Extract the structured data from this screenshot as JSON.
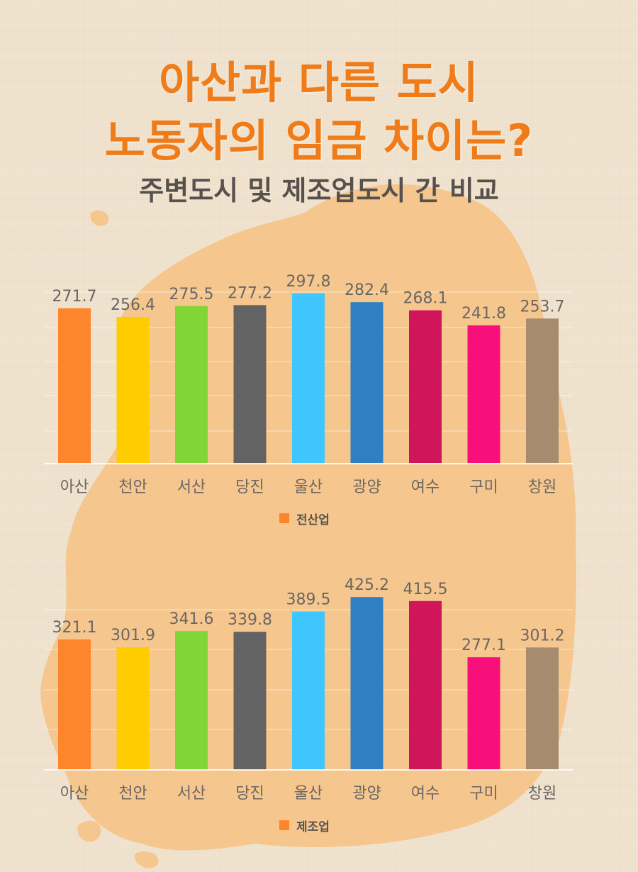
{
  "header": {
    "title_line1": "아산과 다른 도시",
    "title_line2": "노동자의 임금 차이는?",
    "subtitle": "주변도시 및 제조업도시 간 비교"
  },
  "colors": {
    "title": "#f07c19",
    "subtitle": "#58504c",
    "map": "#f6c283",
    "background": "#f1e4d0",
    "bars": [
      "#fd862c",
      "#ffcc00",
      "#7fd636",
      "#636363",
      "#3fc6fe",
      "#2f80c2",
      "#d0155a",
      "#f8107a",
      "#a68b6e"
    ]
  },
  "chart_data": [
    {
      "type": "bar",
      "categories": [
        "아산",
        "천안",
        "서산",
        "당진",
        "울산",
        "광양",
        "여수",
        "구미",
        "창원"
      ],
      "series": [
        {
          "name": "전산업",
          "values": [
            271.7,
            256.4,
            275.5,
            277.2,
            297.8,
            282.4,
            268.1,
            241.8,
            253.7
          ]
        }
      ],
      "value_labels": [
        "271.7",
        "256.4",
        "275.5",
        "277.2",
        "297.8",
        "282.4",
        "268.1",
        "241.8",
        "253.7"
      ],
      "ylim": [
        0,
        300
      ],
      "grid": true,
      "legend": "bottom-center"
    },
    {
      "type": "bar",
      "categories": [
        "아산",
        "천안",
        "서산",
        "당진",
        "울산",
        "광양",
        "여수",
        "구미",
        "창원"
      ],
      "series": [
        {
          "name": "제조업",
          "values": [
            321.1,
            301.9,
            341.6,
            339.8,
            389.5,
            425.2,
            415.5,
            277.1,
            301.2
          ]
        }
      ],
      "value_labels": [
        "321.1",
        "301.9",
        "341.6",
        "339.8",
        "389.5",
        "425.2",
        "415.5",
        "277.1",
        "301.2"
      ],
      "ylim": [
        0,
        450
      ],
      "grid": true,
      "legend": "bottom-center"
    }
  ]
}
